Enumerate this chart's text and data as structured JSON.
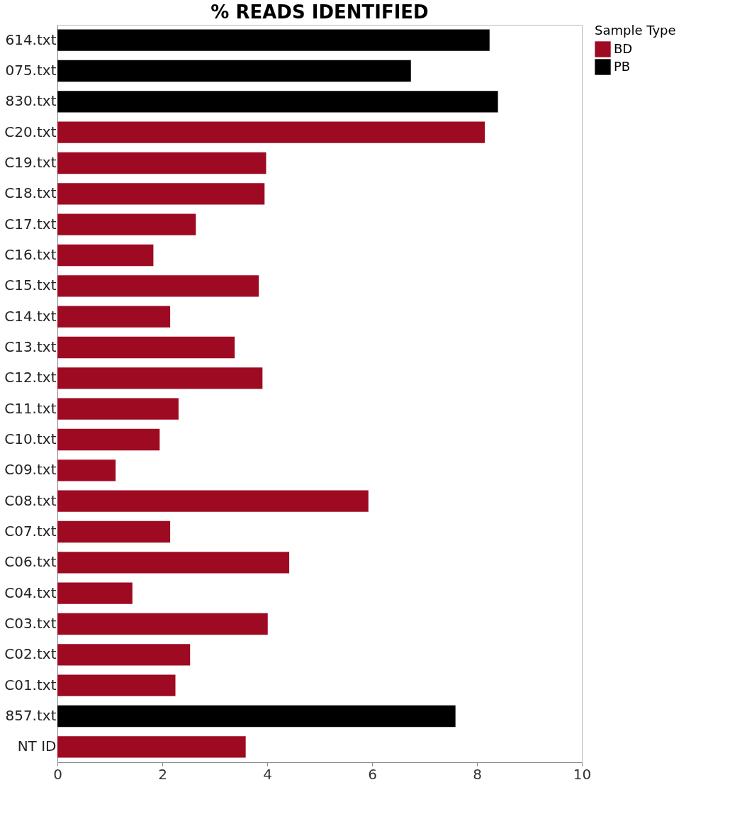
{
  "chart_data": {
    "type": "bar",
    "orientation": "horizontal",
    "title": "% READS IDENTIFIED",
    "legend_title": "Sample Type",
    "legend": "top right",
    "grid": false,
    "categories": [
      "614.txt",
      "075.txt",
      "830.txt",
      "C20.txt",
      "C19.txt",
      "C18.txt",
      "C17.txt",
      "C16.txt",
      "C15.txt",
      "C14.txt",
      "C13.txt",
      "C12.txt",
      "C11.txt",
      "C10.txt",
      "C09.txt",
      "C08.txt",
      "C07.txt",
      "C06.txt",
      "C04.txt",
      "C03.txt",
      "C02.txt",
      "C01.txt",
      "857.txt",
      "NT ID"
    ],
    "series": [
      {
        "name": "BD",
        "color": "#9e0a22",
        "values": [
          null,
          null,
          null,
          8.15,
          3.98,
          3.95,
          2.64,
          1.83,
          3.84,
          2.15,
          3.38,
          3.91,
          2.31,
          1.95,
          1.11,
          5.93,
          2.15,
          4.42,
          1.43,
          4.01,
          2.53,
          2.25,
          null,
          3.59
        ]
      },
      {
        "name": "PB",
        "color": "#000000",
        "values": [
          8.24,
          6.74,
          8.4,
          null,
          null,
          null,
          null,
          null,
          null,
          null,
          null,
          null,
          null,
          null,
          null,
          null,
          null,
          null,
          null,
          null,
          null,
          null,
          7.59,
          null
        ]
      }
    ],
    "xlim": [
      0,
      10
    ],
    "xticks": [
      0,
      2,
      4,
      6,
      8,
      10
    ]
  }
}
